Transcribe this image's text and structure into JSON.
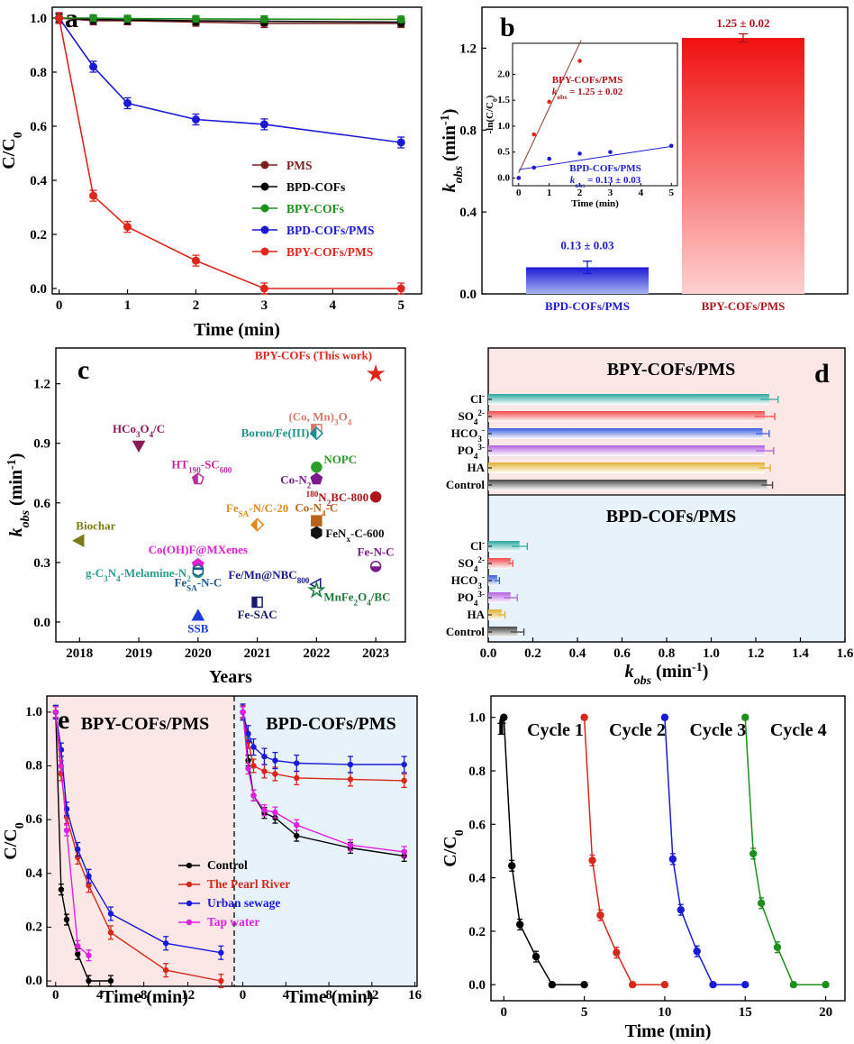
{
  "chart_data": [
    {
      "panel": "a",
      "type": "line",
      "xlabel": "Time (min)",
      "ylabel": "C/C0",
      "xlim": [
        -0.1,
        5.3
      ],
      "ylim": [
        -0.02,
        1.04
      ],
      "x_ticks": [
        0,
        1,
        2,
        3,
        4,
        5
      ],
      "y_ticks": [
        0.0,
        0.2,
        0.4,
        0.6,
        0.8,
        1.0
      ],
      "legend_position": "center-right",
      "series": [
        {
          "name": "PMS",
          "color": "#7a1f1f",
          "x": [
            0,
            0.5,
            1,
            2,
            3,
            5
          ],
          "y": [
            1.0,
            0.99,
            0.99,
            0.985,
            0.98,
            0.98
          ],
          "err": 0.015
        },
        {
          "name": "BPD-COFs",
          "color": "#000000",
          "x": [
            0,
            0.5,
            1,
            2,
            3,
            5
          ],
          "y": [
            1.0,
            0.995,
            0.993,
            0.99,
            0.988,
            0.985
          ],
          "err": 0.015
        },
        {
          "name": "BPY-COFs",
          "color": "#1e8f1e",
          "x": [
            0,
            0.5,
            1,
            2,
            3,
            5
          ],
          "y": [
            1.0,
            1.0,
            0.998,
            0.997,
            0.996,
            0.995
          ],
          "err": 0.012
        },
        {
          "name": "BPD-COFs/PMS",
          "color": "#1a1ad6",
          "x": [
            0,
            0.5,
            1,
            2,
            3,
            5
          ],
          "y": [
            1.0,
            0.82,
            0.685,
            0.625,
            0.607,
            0.54
          ],
          "err": 0.02
        },
        {
          "name": "BPY-COFs/PMS",
          "color": "#e0261b",
          "x": [
            0,
            0.5,
            1,
            2,
            3,
            5
          ],
          "y": [
            1.0,
            0.343,
            0.228,
            0.103,
            0.0,
            0.0
          ],
          "err": 0.02
        }
      ]
    },
    {
      "panel": "b",
      "type": "bar",
      "ylabel_main": "k",
      "ylabel_sub": "obs",
      "ylabel_unit": " (min",
      "ylabel_sup": "-1",
      "ylabel_close": ")",
      "categories": [
        "BPD-COFs/PMS",
        "BPY-COFs/PMS"
      ],
      "values": [
        0.13,
        1.25
      ],
      "errors": [
        0.03,
        0.02
      ],
      "value_labels": [
        "0.13 ± 0.03",
        "1.25 ± 0.02"
      ],
      "colors": [
        "#1a1ad6",
        "#e0261b"
      ],
      "ylim": [
        0,
        1.4
      ],
      "y_ticks": [
        0.0,
        0.4,
        0.8,
        1.2
      ],
      "inset": {
        "type": "scatter",
        "xlabel": "Time (min)",
        "ylabel": "-ln(C/C0)",
        "xlim": [
          -0.2,
          5.2
        ],
        "ylim": [
          -0.15,
          2.6
        ],
        "x_ticks": [
          0,
          1,
          2,
          3,
          4,
          5
        ],
        "y_ticks": [
          0.0,
          0.5,
          1.0,
          1.5,
          2.0
        ],
        "series": [
          {
            "name": "BPY-COFs/PMS",
            "label_k": "k",
            "label_obs": "obs",
            "label_val": " = 1.25 ± 0.02",
            "color": "#e0261b",
            "fit_color": "#8b3a2f",
            "x": [
              0,
              0.5,
              1,
              2
            ],
            "y": [
              0.0,
              0.84,
              1.47,
              2.26
            ],
            "slope": 1.25,
            "intercept": 0.1
          },
          {
            "name": "BPD-COFs/PMS",
            "label_k": "k",
            "label_obs": "obs",
            "label_val": " = 0.13 ± 0.03",
            "color": "#1a1ad6",
            "fit_color": "#1a1ad6",
            "x": [
              0,
              0.5,
              1,
              2,
              3,
              5
            ],
            "y": [
              0.0,
              0.2,
              0.37,
              0.47,
              0.5,
              0.62
            ],
            "slope": 0.09,
            "intercept": 0.16
          }
        ]
      }
    },
    {
      "panel": "c",
      "type": "scatter",
      "xlabel": "Years",
      "ylim": [
        -0.1,
        1.38
      ],
      "xlim": [
        2017.6,
        2023.5
      ],
      "x_ticks": [
        2018,
        2019,
        2020,
        2021,
        2022,
        2023
      ],
      "y_ticks": [
        0.0,
        0.3,
        0.6,
        0.9,
        1.2
      ],
      "points": [
        {
          "label": "BPY-COFs (This work)",
          "x": 2023,
          "y": 1.25,
          "color": "#e0261b",
          "marker": "star"
        },
        {
          "label": "(Co, Mn)3O4",
          "x": 2022,
          "y": 0.97,
          "color": "#d97a6e",
          "marker": "square-half"
        },
        {
          "label": "Boron/Fe(III)",
          "x": 2022,
          "y": 0.95,
          "color": "#1f8f8f",
          "marker": "diamond-half"
        },
        {
          "label": "HCo3O4/C",
          "x": 2019,
          "y": 0.89,
          "color": "#8b1a5a",
          "marker": "triangle-down"
        },
        {
          "label": "NOPC",
          "x": 2022,
          "y": 0.78,
          "color": "#2a9d2a",
          "marker": "circle"
        },
        {
          "label": "HT190-SC600",
          "x": 2020,
          "y": 0.72,
          "color": "#c02da0",
          "marker": "pentagon-half"
        },
        {
          "label": "Co-N2",
          "x": 2022,
          "y": 0.72,
          "color": "#7a1a8b",
          "marker": "pentagon"
        },
        {
          "label": "180N2BC-800",
          "x": 2023,
          "y": 0.63,
          "color": "#b0141b",
          "marker": "circle"
        },
        {
          "label": "FeSA-N/C-20",
          "x": 2021,
          "y": 0.49,
          "color": "#e08a1f",
          "marker": "diamond-half"
        },
        {
          "label": "Co-N4-C",
          "x": 2022,
          "y": 0.51,
          "color": "#b8621a",
          "marker": "square"
        },
        {
          "label": "FeNx-C-600",
          "x": 2022,
          "y": 0.45,
          "color": "#111111",
          "marker": "hexagon"
        },
        {
          "label": "Biochar",
          "x": 2018,
          "y": 0.41,
          "color": "#7a7a1a",
          "marker": "triangle-left"
        },
        {
          "label": "Co(OH)F@MXenes",
          "x": 2020,
          "y": 0.29,
          "color": "#e020d0",
          "marker": "pentagon"
        },
        {
          "label": "g-C3N4-Melamine-N2",
          "x": 2020,
          "y": 0.25,
          "color": "#2a9d8f",
          "marker": "circle-half"
        },
        {
          "label": "FeSA-N-C",
          "x": 2020,
          "y": 0.26,
          "color": "#1a5a8b",
          "marker": "hexagon-half"
        },
        {
          "label": "Fe-N-C",
          "x": 2023,
          "y": 0.28,
          "color": "#7a1a8b",
          "marker": "circle-half"
        },
        {
          "label": "Fe/Mn@NBC800",
          "x": 2022,
          "y": 0.19,
          "color": "#1a1a8b",
          "marker": "triangle-left-open"
        },
        {
          "label": "MnFe2O4/BC",
          "x": 2022,
          "y": 0.16,
          "color": "#1a7a3a",
          "marker": "star-open"
        },
        {
          "label": "Fe-SAC",
          "x": 2021,
          "y": 0.1,
          "color": "#1a1a6b",
          "marker": "square-half"
        },
        {
          "label": "SSB",
          "x": 2020,
          "y": 0.03,
          "color": "#1a3ad6",
          "marker": "triangle"
        }
      ]
    },
    {
      "panel": "d",
      "type": "bar",
      "orientation": "horizontal",
      "xlabel_main": "k",
      "xlabel_sub": "obs",
      "xlabel_unit": " (min",
      "xlabel_sup": "-1",
      "xlabel_close": ")",
      "xlim": [
        0,
        1.6
      ],
      "x_ticks": [
        0.0,
        0.2,
        0.4,
        0.6,
        0.8,
        1.0,
        1.2,
        1.4,
        1.6
      ],
      "groups": [
        {
          "title": "BPY-COFs/PMS",
          "title_color": "#b0141b",
          "bg": "#fbe8e6",
          "categories": [
            "Cl-",
            "SO42-",
            "HCO3-",
            "PO43-",
            "HA",
            "Control"
          ],
          "values": [
            1.26,
            1.24,
            1.23,
            1.24,
            1.24,
            1.25
          ],
          "errors": [
            0.04,
            0.045,
            0.03,
            0.04,
            0.025,
            0.025
          ]
        },
        {
          "title": "BPD-COFs/PMS",
          "title_color": "#1a1ad6",
          "bg": "#e8f2fb",
          "categories": [
            "Cl-",
            "SO42-",
            "HCO3-",
            "PO43-",
            "HA",
            "Control"
          ],
          "values": [
            0.14,
            0.1,
            0.04,
            0.1,
            0.06,
            0.13
          ],
          "errors": [
            0.035,
            0.01,
            0.01,
            0.03,
            0.015,
            0.03
          ]
        }
      ],
      "bar_colors": [
        "#2aa8a0",
        "#f04848",
        "#3a5ae0",
        "#b060e0",
        "#e0b030",
        "#444444"
      ]
    },
    {
      "panel": "e",
      "type": "line",
      "ylabel": "C/C0",
      "xlabel": "Time (min)",
      "ylim": [
        -0.02,
        1.06
      ],
      "y_ticks": [
        0.0,
        0.2,
        0.4,
        0.6,
        0.8,
        1.0
      ],
      "x_ticks": [
        0,
        4,
        8,
        12,
        16
      ],
      "legend_position": "lower-center",
      "legend": [
        "Control",
        "The Pearl River",
        "Urban sewage",
        "Tap water"
      ],
      "colors": [
        "#000000",
        "#d6281b",
        "#1a1ad6",
        "#e020e0"
      ],
      "subpanels": [
        {
          "title": "BPY-COFs/PMS",
          "title_color": "#d6281b",
          "bg": "#fbe8e6",
          "series": [
            {
              "name": "Control",
              "x": [
                0,
                0.5,
                1,
                2,
                3,
                5
              ],
              "y": [
                1.0,
                0.34,
                0.228,
                0.1,
                0.0,
                0.0
              ],
              "err": 0.02
            },
            {
              "name": "The Pearl River",
              "x": [
                0,
                0.5,
                1,
                2,
                3,
                5,
                10,
                15
              ],
              "y": [
                1.0,
                0.77,
                0.61,
                0.46,
                0.355,
                0.18,
                0.04,
                0.0
              ],
              "err": 0.025
            },
            {
              "name": "Urban sewage",
              "x": [
                0,
                0.5,
                1,
                2,
                3,
                5,
                10,
                15
              ],
              "y": [
                1.0,
                0.86,
                0.64,
                0.49,
                0.39,
                0.25,
                0.14,
                0.105
              ],
              "err": 0.025
            },
            {
              "name": "Tap water",
              "x": [
                0,
                0.5,
                1,
                2,
                3
              ],
              "y": [
                1.0,
                0.8,
                0.56,
                0.13,
                0.095
              ],
              "err": 0.02
            }
          ]
        },
        {
          "title": "BPD-COFs/PMS",
          "title_color": "#1a1ad6",
          "bg": "#e8f2fb",
          "series": [
            {
              "name": "Control",
              "x": [
                0,
                0.5,
                1,
                2,
                3,
                5,
                10,
                15
              ],
              "y": [
                1.0,
                0.82,
                0.69,
                0.625,
                0.607,
                0.54,
                0.495,
                0.465
              ],
              "err": 0.02
            },
            {
              "name": "The Pearl River",
              "x": [
                0,
                0.5,
                1,
                2,
                3,
                5,
                10,
                15
              ],
              "y": [
                1.0,
                0.89,
                0.8,
                0.78,
                0.77,
                0.755,
                0.75,
                0.745
              ],
              "err": 0.025
            },
            {
              "name": "Urban sewage",
              "x": [
                0,
                0.5,
                1,
                2,
                3,
                5,
                10,
                15
              ],
              "y": [
                1.0,
                0.92,
                0.87,
                0.835,
                0.82,
                0.81,
                0.805,
                0.805
              ],
              "err": 0.03
            },
            {
              "name": "Tap water",
              "x": [
                0,
                0.5,
                1,
                2,
                3,
                5,
                10,
                15
              ],
              "y": [
                1.0,
                0.79,
                0.69,
                0.635,
                0.627,
                0.58,
                0.505,
                0.48
              ],
              "err": 0.02
            }
          ]
        }
      ]
    },
    {
      "panel": "f",
      "type": "line",
      "ylabel": "C/C0",
      "xlabel": "Time (min)",
      "xlim": [
        -0.8,
        21.2
      ],
      "ylim": [
        -0.06,
        1.08
      ],
      "x_ticks": [
        0,
        5,
        10,
        15,
        20
      ],
      "y_ticks": [
        0.0,
        0.2,
        0.4,
        0.6,
        0.8,
        1.0
      ],
      "series": [
        {
          "name": "Cycle 1",
          "color": "#000000",
          "x": [
            0,
            0.5,
            1,
            2,
            3,
            5
          ],
          "y": [
            1.0,
            0.445,
            0.225,
            0.105,
            0.0,
            0.0
          ],
          "err": 0.02
        },
        {
          "name": "Cycle 2",
          "color": "#d6281b",
          "x": [
            5,
            5.5,
            6,
            7,
            8,
            10
          ],
          "y": [
            1.0,
            0.465,
            0.26,
            0.12,
            0.0,
            0.0
          ],
          "err": 0.02
        },
        {
          "name": "Cycle 3",
          "color": "#1a1ad6",
          "x": [
            10,
            10.5,
            11,
            12,
            13,
            15
          ],
          "y": [
            1.0,
            0.47,
            0.28,
            0.125,
            0.0,
            0.0
          ],
          "err": 0.02
        },
        {
          "name": "Cycle 4",
          "color": "#1e8f1e",
          "x": [
            15,
            15.5,
            16,
            17,
            18,
            20
          ],
          "y": [
            1.0,
            0.49,
            0.305,
            0.14,
            0.0,
            0.0
          ],
          "err": 0.02
        }
      ]
    }
  ],
  "letters": [
    "a",
    "b",
    "c",
    "d",
    "e",
    "f"
  ]
}
